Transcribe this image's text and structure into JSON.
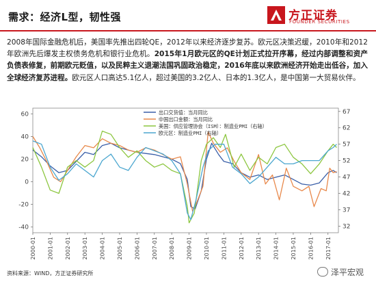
{
  "header": {
    "title": "需求：经济L型，韧性强",
    "logo_cn": "方正证券",
    "logo_en": "FOUNDER SECURITIES",
    "accent": "#c8161d"
  },
  "paragraph": {
    "p1": "2008年国际金融危机后，美国率先推出四轮QE，2012年以来经济逐步复苏。欧元区决策迟缓，2010年和2012年欧洲先后爆发主权债务危机和银行业危机。",
    "p2_bold": "2015年1月欧元区的QE计划正式拉开序幕，经过内部调整和资产负债表修复，前期欧元贬值，以及民粹主义退潮法国巩固政治稳定，2016年底以来欧洲经济开始走出低谷，加入全球经济复苏进程。",
    "p3": "欧元区人口高达5.1亿人，超过美国的3.2亿人、日本的1.3亿人，是中国第一大贸易伙伴。"
  },
  "footer": {
    "source": "资料来源：WIND，方正证券研究所",
    "watermark": "泽平宏观"
  },
  "chart_data": {
    "type": "line",
    "left_axis": {
      "ticks": [
        60,
        40,
        20,
        0,
        -20,
        -40
      ],
      "min": -45,
      "max": 65
    },
    "right_axis": {
      "ticks": [
        67,
        62,
        57,
        52,
        47,
        42,
        37,
        32
      ],
      "min": 30,
      "max": 68
    },
    "x_labels": [
      "2000-01",
      "2001-01",
      "2002-01",
      "2003-01",
      "2004-01",
      "2005-01",
      "2006-01",
      "2007-01",
      "2008-01",
      "2009-01",
      "2010-01",
      "2011-01",
      "2012-01",
      "2013-01",
      "2014-01",
      "2015-01",
      "2016-01",
      "2017-01"
    ],
    "series": [
      {
        "name": "出口交货值：当月同比",
        "axis": "left",
        "color": "#3a5fa8",
        "values": [
          [
            2000.0,
            28
          ],
          [
            2000.5,
            22
          ],
          [
            2001.0,
            14
          ],
          [
            2001.5,
            8
          ],
          [
            2002.0,
            10
          ],
          [
            2002.5,
            18
          ],
          [
            2003.0,
            26
          ],
          [
            2003.5,
            24
          ],
          [
            2004.0,
            32
          ],
          [
            2004.5,
            34
          ],
          [
            2005.0,
            30
          ],
          [
            2005.5,
            28
          ],
          [
            2006.0,
            26
          ],
          [
            2006.5,
            25
          ],
          [
            2007.0,
            24
          ],
          [
            2007.5,
            22
          ],
          [
            2008.0,
            20
          ],
          [
            2008.5,
            16
          ],
          [
            2008.9,
            2
          ],
          [
            2009.1,
            -22
          ],
          [
            2009.35,
            -24
          ],
          [
            2009.7,
            -8
          ],
          [
            2010.0,
            20
          ],
          [
            2010.3,
            34
          ],
          [
            2010.7,
            24
          ],
          [
            2011.0,
            18
          ],
          [
            2011.5,
            16
          ],
          [
            2012.0,
            8
          ],
          [
            2012.5,
            4
          ],
          [
            2013.0,
            6
          ],
          [
            2013.5,
            2
          ],
          [
            2014.0,
            4
          ],
          [
            2014.5,
            6
          ],
          [
            2015.0,
            2
          ],
          [
            2015.5,
            -2
          ],
          [
            2016.0,
            -3
          ],
          [
            2016.5,
            -1
          ],
          [
            2017.0,
            8
          ],
          [
            2017.3,
            10
          ],
          [
            2017.5,
            8
          ]
        ]
      },
      {
        "name": "中国出口金额：当月同比",
        "axis": "left",
        "color": "#e8884a",
        "values": [
          [
            2000.0,
            40
          ],
          [
            2000.4,
            30
          ],
          [
            2000.8,
            18
          ],
          [
            2001.2,
            4
          ],
          [
            2001.6,
            0
          ],
          [
            2002.0,
            10
          ],
          [
            2002.5,
            22
          ],
          [
            2003.0,
            32
          ],
          [
            2003.5,
            30
          ],
          [
            2004.0,
            38
          ],
          [
            2004.5,
            34
          ],
          [
            2005.0,
            32
          ],
          [
            2005.5,
            28
          ],
          [
            2006.0,
            26
          ],
          [
            2006.5,
            30
          ],
          [
            2007.0,
            28
          ],
          [
            2007.5,
            24
          ],
          [
            2008.0,
            20
          ],
          [
            2008.5,
            22
          ],
          [
            2008.9,
            -2
          ],
          [
            2009.2,
            -26
          ],
          [
            2009.4,
            -20
          ],
          [
            2009.8,
            -4
          ],
          [
            2010.1,
            44
          ],
          [
            2010.4,
            34
          ],
          [
            2010.8,
            26
          ],
          [
            2011.2,
            30
          ],
          [
            2011.6,
            18
          ],
          [
            2012.0,
            8
          ],
          [
            2012.5,
            2
          ],
          [
            2013.0,
            24
          ],
          [
            2013.4,
            -2
          ],
          [
            2013.8,
            6
          ],
          [
            2014.2,
            -16
          ],
          [
            2014.6,
            12
          ],
          [
            2015.0,
            -4
          ],
          [
            2015.5,
            -8
          ],
          [
            2015.9,
            -4
          ],
          [
            2016.2,
            -22
          ],
          [
            2016.6,
            -6
          ],
          [
            2016.9,
            -8
          ],
          [
            2017.1,
            12
          ],
          [
            2017.3,
            8
          ],
          [
            2017.5,
            9
          ]
        ]
      },
      {
        "name": "美国：供应管理协会（ISM）：制造业PMI（右轴）",
        "axis": "right",
        "color": "#8cc63f",
        "values": [
          [
            2000.0,
            56
          ],
          [
            2000.5,
            50
          ],
          [
            2001.0,
            43
          ],
          [
            2001.5,
            42
          ],
          [
            2002.0,
            50
          ],
          [
            2002.5,
            52
          ],
          [
            2003.0,
            50
          ],
          [
            2003.5,
            52
          ],
          [
            2004.0,
            61
          ],
          [
            2004.5,
            60
          ],
          [
            2005.0,
            56
          ],
          [
            2005.5,
            53
          ],
          [
            2006.0,
            55
          ],
          [
            2006.5,
            52
          ],
          [
            2007.0,
            50
          ],
          [
            2007.5,
            51
          ],
          [
            2008.0,
            49
          ],
          [
            2008.5,
            48
          ],
          [
            2008.9,
            38
          ],
          [
            2009.0,
            33
          ],
          [
            2009.3,
            36
          ],
          [
            2009.7,
            52
          ],
          [
            2010.0,
            57
          ],
          [
            2010.4,
            59
          ],
          [
            2010.8,
            56
          ],
          [
            2011.1,
            60
          ],
          [
            2011.6,
            50
          ],
          [
            2012.0,
            54
          ],
          [
            2012.5,
            49
          ],
          [
            2013.0,
            53
          ],
          [
            2013.5,
            51
          ],
          [
            2014.0,
            56
          ],
          [
            2014.5,
            57
          ],
          [
            2015.0,
            53
          ],
          [
            2015.5,
            51
          ],
          [
            2016.0,
            48
          ],
          [
            2016.5,
            51
          ],
          [
            2017.0,
            55
          ],
          [
            2017.3,
            57
          ],
          [
            2017.5,
            56
          ]
        ]
      },
      {
        "name": "欧元区：制造业PMI（右轴）",
        "axis": "right",
        "color": "#4aa6cf",
        "values": [
          [
            2000.0,
            58
          ],
          [
            2000.5,
            57
          ],
          [
            2001.0,
            50
          ],
          [
            2001.5,
            46
          ],
          [
            2002.0,
            48
          ],
          [
            2002.5,
            51
          ],
          [
            2003.0,
            49
          ],
          [
            2003.5,
            47
          ],
          [
            2004.0,
            52
          ],
          [
            2004.5,
            54
          ],
          [
            2005.0,
            50
          ],
          [
            2005.5,
            49
          ],
          [
            2006.0,
            53
          ],
          [
            2006.5,
            56
          ],
          [
            2007.0,
            55
          ],
          [
            2007.5,
            54
          ],
          [
            2008.0,
            52
          ],
          [
            2008.5,
            48
          ],
          [
            2008.9,
            36
          ],
          [
            2009.1,
            34
          ],
          [
            2009.4,
            40
          ],
          [
            2009.8,
            50
          ],
          [
            2010.1,
            55
          ],
          [
            2010.5,
            57
          ],
          [
            2011.0,
            57
          ],
          [
            2011.5,
            50
          ],
          [
            2012.0,
            48
          ],
          [
            2012.5,
            45
          ],
          [
            2013.0,
            47
          ],
          [
            2013.5,
            50
          ],
          [
            2014.0,
            53
          ],
          [
            2014.5,
            51
          ],
          [
            2015.0,
            51
          ],
          [
            2015.5,
            52
          ],
          [
            2016.0,
            52
          ],
          [
            2016.5,
            52
          ],
          [
            2017.0,
            55
          ],
          [
            2017.3,
            56
          ],
          [
            2017.5,
            57
          ]
        ]
      }
    ],
    "grid": false,
    "legend_placement": "top-center"
  }
}
